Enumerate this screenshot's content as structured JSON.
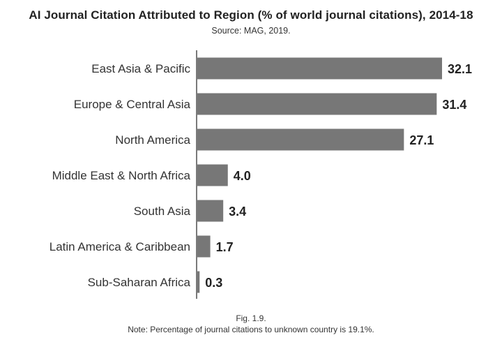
{
  "chart_data": {
    "type": "bar",
    "orientation": "horizontal",
    "title": "AI Journal Citation Attributed to Region (% of world journal citations), 2014-18",
    "subtitle": "Source: MAG, 2019.",
    "categories": [
      "East Asia & Pacific",
      "Europe & Central Asia",
      "North America",
      "Middle East & North Africa",
      "South Asia",
      "Latin America & Caribbean",
      "Sub-Saharan Africa"
    ],
    "values": [
      32.1,
      31.4,
      27.1,
      4.0,
      3.4,
      1.7,
      0.3
    ],
    "value_labels": [
      "32.1",
      "31.4",
      "27.1",
      "4.0",
      "3.4",
      "1.7",
      "0.3"
    ],
    "bar_color": "#777777",
    "xlim": [
      0,
      32.1
    ],
    "grid": false
  },
  "caption": {
    "figure": "Fig. 1.9.",
    "note": "Note: Percentage of journal citations to unknown country is 19.1%."
  }
}
